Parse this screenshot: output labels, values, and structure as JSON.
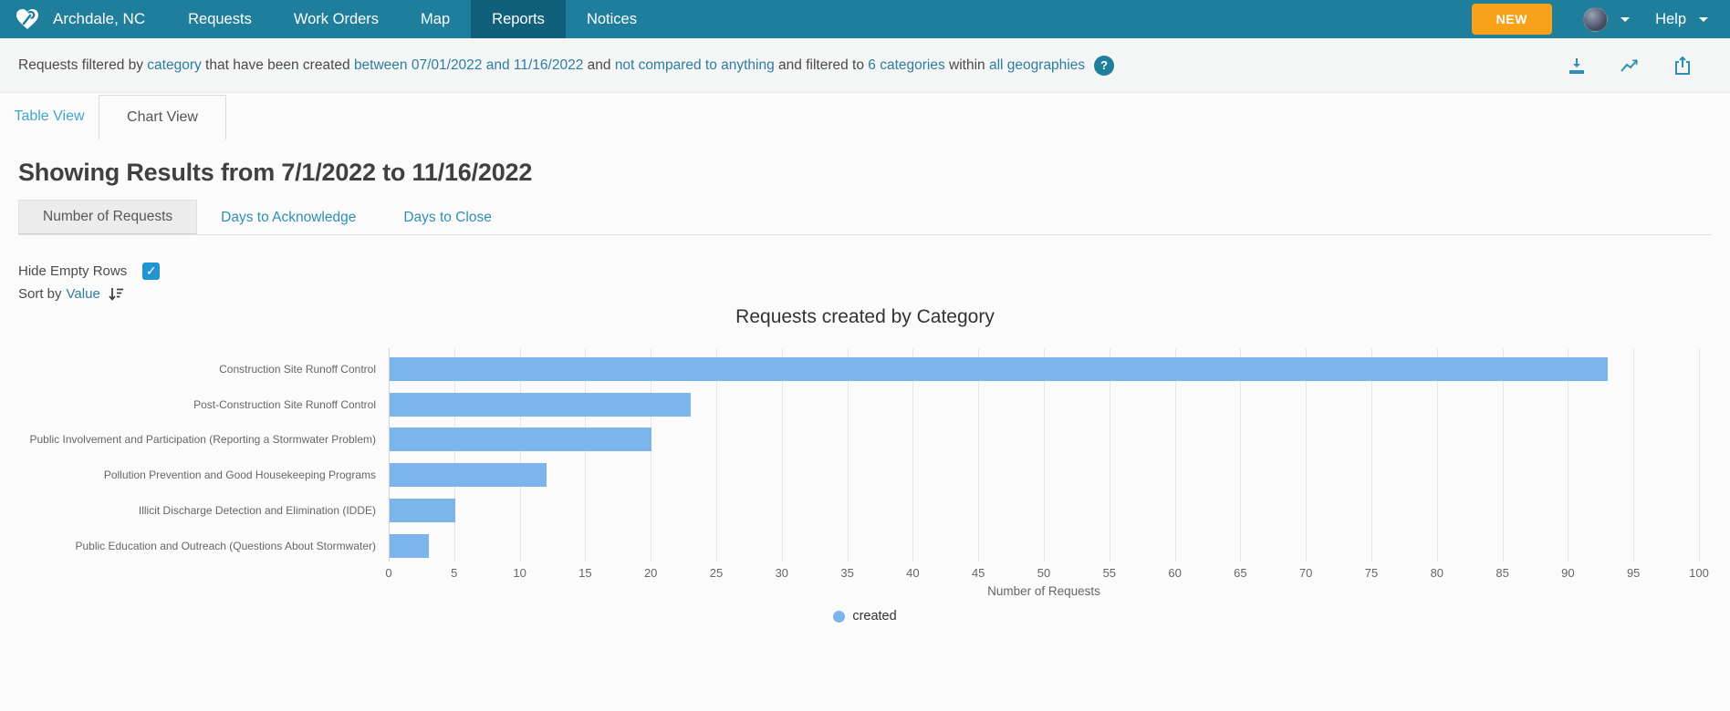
{
  "nav": {
    "brand": "Archdale, NC",
    "items": [
      {
        "label": "Requests",
        "active": false
      },
      {
        "label": "Work Orders",
        "active": false
      },
      {
        "label": "Map",
        "active": false
      },
      {
        "label": "Reports",
        "active": true
      },
      {
        "label": "Notices",
        "active": false
      }
    ],
    "new_button_label": "NEW",
    "help_label": "Help",
    "colors": {
      "bar": "#1e7e9c",
      "active_item": "#10607b",
      "new_button": "#f7a219"
    }
  },
  "filter_bar": {
    "segments": [
      {
        "text": "Requests filtered by ",
        "link": false,
        "underline": false
      },
      {
        "text": "category",
        "link": true,
        "underline": true
      },
      {
        "text": " that have been created ",
        "link": false,
        "underline": false
      },
      {
        "text": "between 07/01/2022 and 11/16/2022",
        "link": true,
        "underline": true
      },
      {
        "text": " and ",
        "link": false,
        "underline": false
      },
      {
        "text": "not compared to anything",
        "link": true,
        "underline": true
      },
      {
        "text": " and filtered to ",
        "link": false,
        "underline": false
      },
      {
        "text": "6 categories",
        "link": true,
        "underline": false
      },
      {
        "text": " within ",
        "link": false,
        "underline": false
      },
      {
        "text": "all geographies",
        "link": true,
        "underline": true
      }
    ],
    "help_badge": "?",
    "icons": [
      "download-icon",
      "line-chart-icon",
      "share-icon"
    ]
  },
  "view_tabs": [
    {
      "label": "Table View",
      "active": false
    },
    {
      "label": "Chart View",
      "active": true
    }
  ],
  "heading": "Showing Results from 7/1/2022 to 11/16/2022",
  "metric_tabs": [
    {
      "label": "Number of Requests",
      "active": true
    },
    {
      "label": "Days to Acknowledge",
      "active": false
    },
    {
      "label": "Days to Close",
      "active": false
    }
  ],
  "controls": {
    "hide_empty_rows_label": "Hide Empty Rows",
    "hide_empty_rows_checked": true,
    "sort_by_label": "Sort by",
    "sort_by_value": "Value"
  },
  "chart_data": {
    "type": "bar",
    "title": "Requests created by Category",
    "categories": [
      "Construction Site Runoff Control",
      "Post-Construction Site Runoff Control",
      "Public Involvement and Participation (Reporting a Stormwater Problem)",
      "Pollution Prevention and Good Housekeeping Programs",
      "Illicit Discharge Detection and Elimination (IDDE)",
      "Public Education and Outreach (Questions About Stormwater)"
    ],
    "series": [
      {
        "name": "created",
        "values": [
          93,
          23,
          20,
          12,
          5,
          3
        ],
        "color": "#7cb5ec"
      }
    ],
    "xlabel": "Number of Requests",
    "xlim": [
      0,
      100
    ],
    "tick_interval": 5,
    "grid": true,
    "legend_position": "bottom"
  }
}
